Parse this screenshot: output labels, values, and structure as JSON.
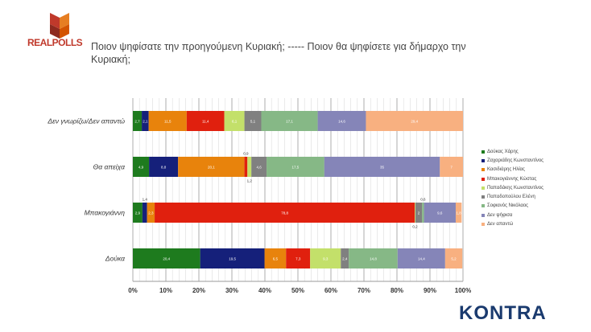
{
  "logo": {
    "text": "REALPOLLS"
  },
  "title": "Ποιον ψηφίσατε την προηγούμενη Κυριακή;  -----  Ποιον θα ψηφίσετε για δήμαρχο την Κυριακή;",
  "brand": "KONTRA",
  "chart_data": {
    "type": "bar",
    "orientation": "horizontal",
    "stacked": "percent",
    "categories": [
      "Δεν γνωρίζω/Δεν απαντώ",
      "Θα απείχα",
      "Μπακογιάννη",
      "Δούκα"
    ],
    "xlim": [
      0,
      100
    ],
    "xticks": [
      "0%",
      "10%",
      "20%",
      "30%",
      "40%",
      "50%",
      "60%",
      "70%",
      "80%",
      "90%",
      "100%"
    ],
    "grid": true,
    "legend": "right",
    "series": [
      {
        "name": "Δούκας Χάρης",
        "color": "#1e7b1e",
        "values": [
          2.7,
          4.9,
          2.9,
          20.4
        ]
      },
      {
        "name": "Ζαχαριάδης Κωνσταντίνος",
        "color": "#15207a",
        "values": [
          2.1,
          8.8,
          1.4,
          19.5
        ]
      },
      {
        "name": "Κασιδιάρης Ηλίας",
        "color": "#e8830c",
        "values": [
          11.5,
          20.1,
          2.3,
          6.5
        ]
      },
      {
        "name": "Μπακογιάννης Κώστας",
        "color": "#e0200e",
        "values": [
          11.4,
          0.9,
          78.8,
          7.3
        ]
      },
      {
        "name": "Παπαδάκης Κωνσταντίνος",
        "color": "#c3e06a",
        "values": [
          6.1,
          1.2,
          0.2,
          9.3
        ]
      },
      {
        "name": "Παπαδοπούλου Ελένη",
        "color": "#808080",
        "values": [
          5.1,
          4.6,
          2.0,
          2.4
        ]
      },
      {
        "name": "Σοφιανός Νικόλαος",
        "color": "#86b886",
        "values": [
          17.1,
          17.5,
          0.6,
          14.8
        ]
      },
      {
        "name": "Δεν ψήφισα",
        "color": "#8585b8",
        "values": [
          14.6,
          35,
          9.6,
          14.4
        ]
      },
      {
        "name": "Δεν απαντώ",
        "color": "#f8b080",
        "values": [
          29.4,
          7,
          1.8,
          5.2
        ]
      }
    ]
  }
}
